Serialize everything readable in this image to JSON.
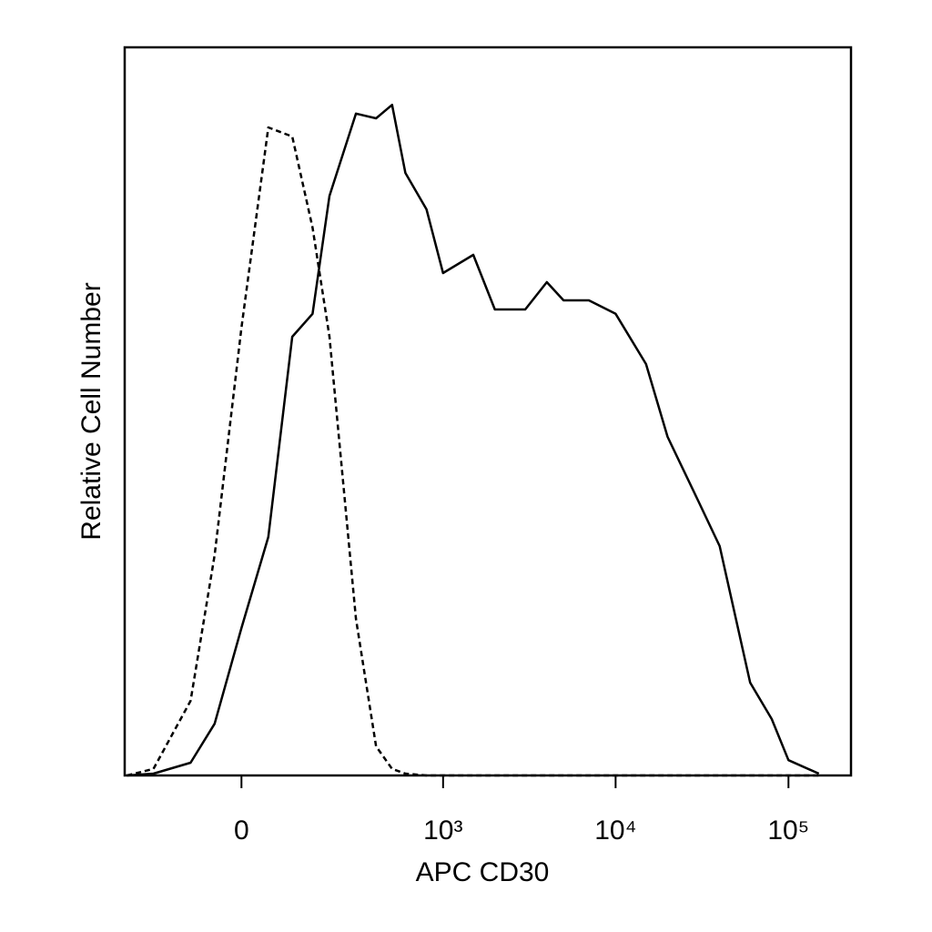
{
  "chart_data": {
    "type": "line",
    "xlabel": "APC CD30",
    "ylabel": "Relative Cell Number",
    "xscale": "asinh",
    "xscale_cofactor": 137,
    "xlim": [
      -310,
      230000
    ],
    "ylim": [
      0,
      100
    ],
    "xticks": [
      0,
      {
        "value": 1000,
        "label": "10³"
      },
      {
        "value": 10000,
        "label": "10⁴"
      },
      {
        "value": 100000,
        "label": "10⁵"
      }
    ],
    "grid": false,
    "x": [
      -300,
      -200,
      -100,
      -50,
      0,
      50,
      100,
      150,
      200,
      300,
      400,
      500,
      600,
      800,
      1000,
      1500,
      2000,
      3000,
      4000,
      5000,
      7000,
      10000,
      15000,
      20000,
      30000,
      40000,
      60000,
      80000,
      100000,
      150000
    ],
    "series": [
      {
        "color": "#000000",
        "dash": false,
        "values": [
          0,
          0.25,
          1.75,
          7.1,
          20.25,
          32.75,
          60.25,
          63.4,
          79.6,
          90.9,
          90.25,
          92.1,
          82.75,
          77.75,
          69,
          71.5,
          64,
          64,
          67.75,
          65.25,
          65.25,
          63.4,
          56.5,
          46.5,
          37.75,
          31.5,
          12.75,
          7.75,
          2.1,
          0.25
        ]
      },
      {
        "color": "#000000",
        "dash": true,
        "values": [
          0,
          0.9,
          10.25,
          30.25,
          61.5,
          89,
          87.75,
          75.25,
          60.25,
          21.5,
          4,
          0.9,
          0.25,
          0,
          0,
          0,
          0,
          0,
          0,
          0,
          0,
          0,
          0,
          0,
          0,
          0,
          0,
          0,
          0,
          0
        ]
      }
    ]
  }
}
